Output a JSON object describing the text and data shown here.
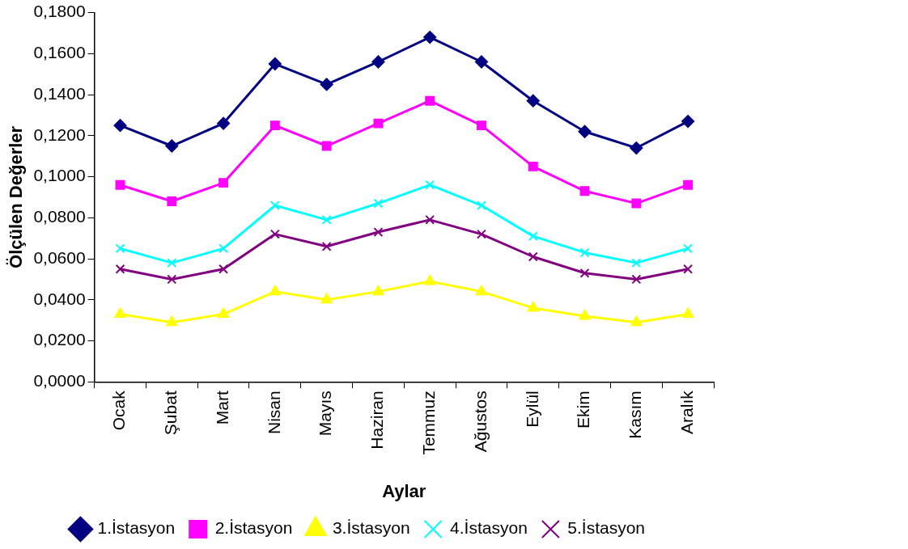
{
  "chart_data": {
    "type": "line",
    "xlabel": "Aylar",
    "ylabel": "Ölçülen Değerler",
    "categories": [
      "Ocak",
      "Şubat",
      "Mart",
      "Nisan",
      "Mayıs",
      "Haziran",
      "Temmuz",
      "Ağustos",
      "Eylül",
      "Ekim",
      "Kasım",
      "Aralık"
    ],
    "series": [
      {
        "name": "1.İstasyon",
        "color": "#000080",
        "marker": "diamond",
        "values": [
          0.125,
          0.115,
          0.126,
          0.155,
          0.145,
          0.156,
          0.168,
          0.156,
          0.137,
          0.122,
          0.114,
          0.127
        ]
      },
      {
        "name": "2.İstasyon",
        "color": "#ff00ff",
        "marker": "square",
        "values": [
          0.096,
          0.088,
          0.097,
          0.125,
          0.115,
          0.126,
          0.137,
          0.125,
          0.105,
          0.093,
          0.087,
          0.096
        ]
      },
      {
        "name": "3.İstasyon",
        "color": "#ffff00",
        "marker": "triangle",
        "values": [
          0.033,
          0.029,
          0.033,
          0.044,
          0.04,
          0.044,
          0.049,
          0.044,
          0.036,
          0.032,
          0.029,
          0.033
        ]
      },
      {
        "name": "4.İstasyon",
        "color": "#00ffff",
        "marker": "cross",
        "values": [
          0.065,
          0.058,
          0.065,
          0.086,
          0.079,
          0.087,
          0.096,
          0.086,
          0.071,
          0.063,
          0.058,
          0.065
        ]
      },
      {
        "name": "5.İstasyon",
        "color": "#800080",
        "marker": "cross",
        "values": [
          0.055,
          0.05,
          0.055,
          0.072,
          0.066,
          0.073,
          0.079,
          0.072,
          0.061,
          0.053,
          0.05,
          0.055
        ]
      }
    ],
    "ylim": [
      0,
      0.18
    ],
    "yticks": [
      {
        "value": 0,
        "label": "0,0000"
      },
      {
        "value": 0.02,
        "label": "0,0200"
      },
      {
        "value": 0.04,
        "label": "0,0400"
      },
      {
        "value": 0.06,
        "label": "0,0600"
      },
      {
        "value": 0.08,
        "label": "0,0800"
      },
      {
        "value": 0.1,
        "label": "0,1000"
      },
      {
        "value": 0.12,
        "label": "0,1200"
      },
      {
        "value": 0.14,
        "label": "0,1400"
      },
      {
        "value": 0.16,
        "label": "0,1600"
      },
      {
        "value": 0.18,
        "label": "0,1800"
      }
    ],
    "grid": false,
    "legend": "bottom",
    "line_style": "solid"
  }
}
